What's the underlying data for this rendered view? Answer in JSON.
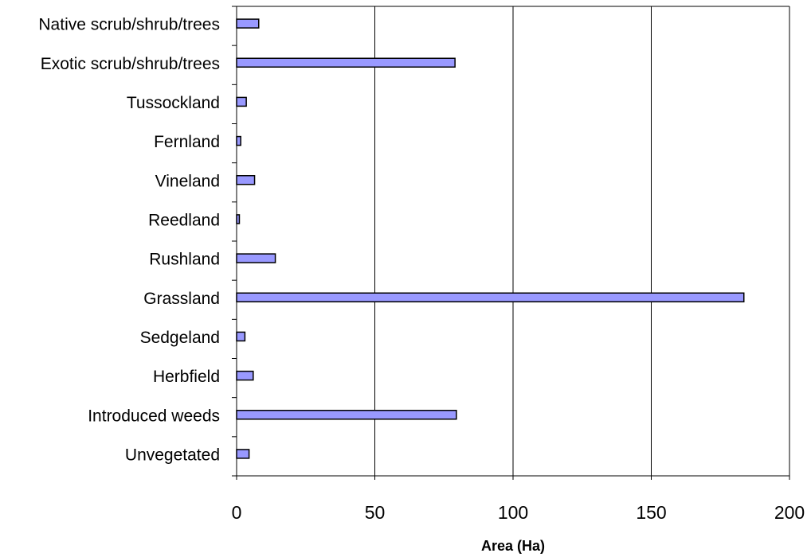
{
  "chart_data": {
    "type": "bar",
    "orientation": "horizontal",
    "title": "",
    "xlabel": "Area (Ha)",
    "ylabel": "",
    "categories": [
      "Native scrub/shrub/trees",
      "Exotic scrub/shrub/trees",
      "Tussockland",
      "Fernland",
      "Vineland",
      "Reedland",
      "Rushland",
      "Grassland",
      "Sedgeland",
      "Herbfield",
      "Introduced weeds",
      "Unvegetated"
    ],
    "values": [
      8,
      79,
      3.5,
      1.5,
      6.5,
      1,
      14,
      183.5,
      3,
      6,
      79.5,
      4.5
    ],
    "xlim": [
      0,
      200
    ],
    "xticks": [
      "0",
      "50",
      "100",
      "150",
      "200"
    ],
    "grid": "vertical",
    "bar_color": "#9999ff",
    "bar_edge_color": "#000000",
    "legend": "none"
  }
}
